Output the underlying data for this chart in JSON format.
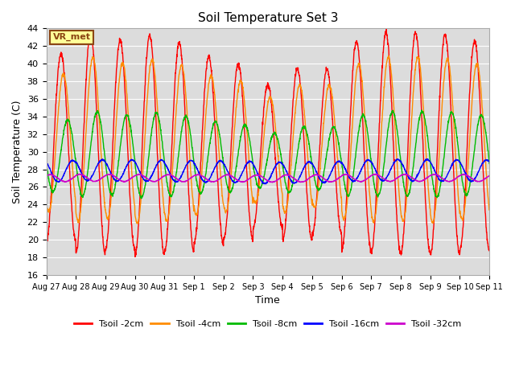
{
  "title": "Soil Temperature Set 3",
  "xlabel": "Time",
  "ylabel": "Soil Temperature (C)",
  "ylim": [
    16,
    44
  ],
  "yticks": [
    16,
    18,
    20,
    22,
    24,
    26,
    28,
    30,
    32,
    34,
    36,
    38,
    40,
    42,
    44
  ],
  "x_labels": [
    "Aug 27",
    "Aug 28",
    "Aug 29",
    "Aug 30",
    "Aug 31",
    "Sep 1",
    "Sep 2",
    "Sep 3",
    "Sep 4",
    "Sep 5",
    "Sep 6",
    "Sep 7",
    "Sep 8",
    "Sep 9",
    "Sep 10",
    "Sep 11"
  ],
  "annotation_text": "VR_met",
  "annotation_color": "#8B4513",
  "annotation_bg": "#FFFF99",
  "colors": {
    "Tsoil -2cm": "#FF0000",
    "Tsoil -4cm": "#FF8C00",
    "Tsoil -8cm": "#00BB00",
    "Tsoil -16cm": "#0000FF",
    "Tsoil -32cm": "#CC00CC"
  },
  "linewidth": 1.0,
  "plot_bg": "#DCDCDC",
  "grid_color": "white",
  "n_days": 15,
  "points_per_day": 144,
  "mean_2cm": 30.5,
  "mean_4cm": 31.0,
  "mean_8cm": 29.5,
  "mean_16cm": 27.8,
  "mean_32cm": 27.0,
  "amp_2cm": 12.5,
  "amp_4cm": 9.5,
  "amp_8cm": 4.8,
  "amp_16cm": 1.2,
  "amp_32cm": 0.4,
  "phase_lag_4cm": 0.5,
  "phase_lag_8cm": 1.4,
  "phase_lag_16cm": 2.5,
  "phase_lag_32cm": 4.0
}
